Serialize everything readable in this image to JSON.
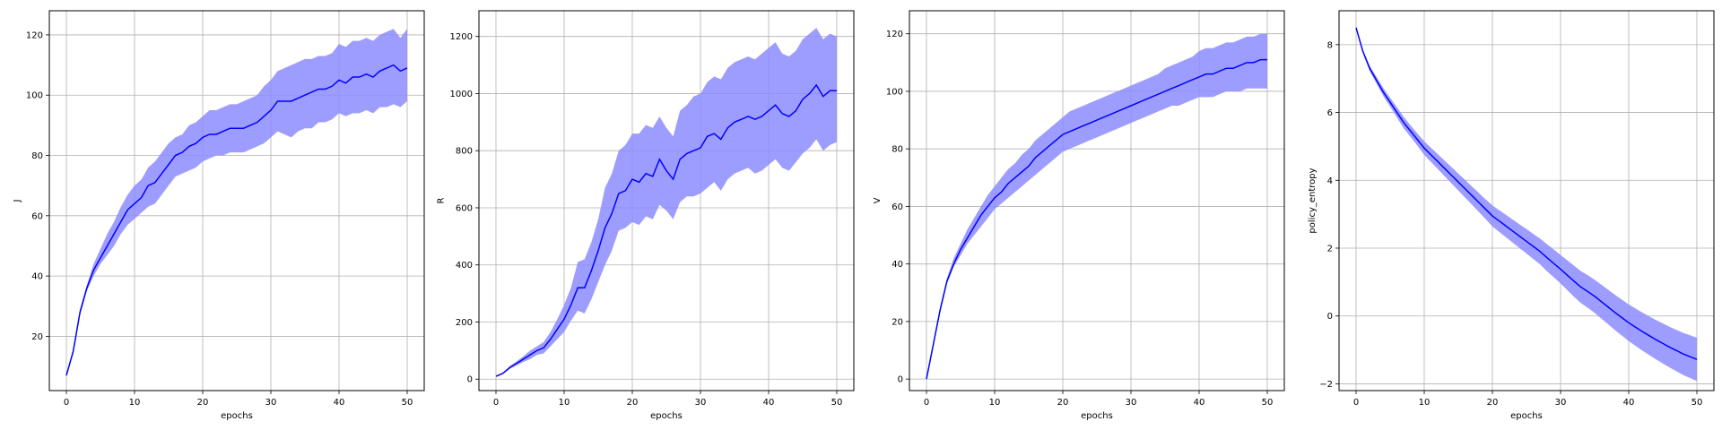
{
  "colors": {
    "line": "#0000ff",
    "band": "#8c8cff",
    "grid": "#b0b0b0"
  },
  "chart_data": [
    {
      "type": "line",
      "xlabel": "epochs",
      "ylabel": "J",
      "xlim": [
        -2.5,
        52.5
      ],
      "ylim": [
        2,
        128
      ],
      "xticks": [
        0,
        10,
        20,
        30,
        40,
        50
      ],
      "yticks": [
        20,
        40,
        60,
        80,
        100,
        120
      ],
      "grid": true,
      "x": [
        0,
        1,
        2,
        3,
        4,
        5,
        6,
        7,
        8,
        9,
        10,
        11,
        12,
        13,
        14,
        15,
        16,
        17,
        18,
        19,
        20,
        21,
        22,
        23,
        24,
        25,
        26,
        27,
        28,
        29,
        30,
        31,
        32,
        33,
        34,
        35,
        36,
        37,
        38,
        39,
        40,
        41,
        42,
        43,
        44,
        45,
        46,
        47,
        48,
        49,
        50
      ],
      "series": [
        {
          "mean": [
            7,
            15,
            28,
            36,
            42,
            46,
            50,
            54,
            58,
            62,
            64,
            66,
            70,
            71,
            74,
            77,
            80,
            81,
            83,
            84,
            86,
            87,
            87,
            88,
            89,
            89,
            89,
            90,
            91,
            93,
            95,
            98,
            98,
            98,
            99,
            100,
            101,
            102,
            102,
            103,
            105,
            104,
            106,
            106,
            107,
            106,
            108,
            109,
            110,
            108,
            109
          ],
          "upper": [
            7,
            15,
            29,
            37,
            44,
            49,
            54,
            58,
            63,
            67,
            70,
            72,
            76,
            78,
            81,
            84,
            86,
            87,
            90,
            91,
            93,
            95,
            95,
            96,
            97,
            97,
            98,
            99,
            100,
            103,
            105,
            108,
            109,
            110,
            111,
            112,
            112,
            113,
            113,
            114,
            117,
            116,
            118,
            118,
            119,
            118,
            120,
            121,
            122,
            119,
            122
          ],
          "lower": [
            7,
            14,
            27,
            35,
            40,
            44,
            47,
            50,
            54,
            57,
            59,
            61,
            63,
            64,
            67,
            70,
            73,
            74,
            75,
            76,
            78,
            79,
            80,
            80,
            81,
            81,
            81,
            82,
            83,
            84,
            86,
            88,
            87,
            86,
            88,
            89,
            89,
            91,
            91,
            92,
            94,
            93,
            94,
            94,
            95,
            94,
            96,
            96,
            97,
            96,
            98
          ]
        }
      ]
    },
    {
      "type": "line",
      "xlabel": "epochs",
      "ylabel": "R",
      "xlim": [
        -2.5,
        52.5
      ],
      "ylim": [
        -40,
        1290
      ],
      "xticks": [
        0,
        10,
        20,
        30,
        40,
        50
      ],
      "yticks": [
        0,
        200,
        400,
        600,
        800,
        1000,
        1200
      ],
      "grid": true,
      "x": [
        0,
        1,
        2,
        3,
        4,
        5,
        6,
        7,
        8,
        9,
        10,
        11,
        12,
        13,
        14,
        15,
        16,
        17,
        18,
        19,
        20,
        21,
        22,
        23,
        24,
        25,
        26,
        27,
        28,
        29,
        30,
        31,
        32,
        33,
        34,
        35,
        36,
        37,
        38,
        39,
        40,
        41,
        42,
        43,
        44,
        45,
        46,
        47,
        48,
        49,
        50
      ],
      "series": [
        {
          "mean": [
            10,
            20,
            40,
            55,
            70,
            85,
            100,
            110,
            140,
            175,
            210,
            260,
            320,
            320,
            380,
            450,
            530,
            580,
            650,
            660,
            700,
            690,
            720,
            710,
            770,
            730,
            700,
            770,
            790,
            800,
            810,
            850,
            860,
            840,
            880,
            900,
            910,
            920,
            910,
            920,
            940,
            960,
            930,
            920,
            940,
            980,
            1000,
            1030,
            990,
            1010,
            1010
          ],
          "upper": [
            10,
            22,
            45,
            62,
            80,
            100,
            115,
            130,
            165,
            210,
            260,
            320,
            410,
            420,
            480,
            560,
            670,
            720,
            800,
            820,
            860,
            860,
            890,
            880,
            920,
            880,
            850,
            940,
            960,
            990,
            1000,
            1040,
            1060,
            1050,
            1090,
            1110,
            1120,
            1130,
            1120,
            1140,
            1160,
            1180,
            1140,
            1130,
            1150,
            1190,
            1210,
            1230,
            1190,
            1210,
            1200
          ],
          "lower": [
            10,
            18,
            36,
            48,
            60,
            70,
            85,
            90,
            115,
            140,
            165,
            205,
            240,
            230,
            280,
            340,
            400,
            450,
            520,
            530,
            550,
            540,
            570,
            560,
            610,
            590,
            560,
            620,
            640,
            640,
            650,
            670,
            690,
            660,
            700,
            720,
            730,
            740,
            720,
            730,
            750,
            770,
            740,
            730,
            760,
            790,
            810,
            840,
            800,
            820,
            830
          ]
        }
      ]
    },
    {
      "type": "line",
      "xlabel": "epochs",
      "ylabel": "V",
      "xlim": [
        -2.5,
        52.5
      ],
      "ylim": [
        -4,
        128
      ],
      "xticks": [
        0,
        10,
        20,
        30,
        40,
        50
      ],
      "yticks": [
        0,
        20,
        40,
        60,
        80,
        100,
        120
      ],
      "grid": true,
      "x": [
        0,
        1,
        2,
        3,
        4,
        5,
        6,
        7,
        8,
        9,
        10,
        11,
        12,
        13,
        14,
        15,
        16,
        17,
        18,
        19,
        20,
        21,
        22,
        23,
        24,
        25,
        26,
        27,
        28,
        29,
        30,
        31,
        32,
        33,
        34,
        35,
        36,
        37,
        38,
        39,
        40,
        41,
        42,
        43,
        44,
        45,
        46,
        47,
        48,
        49,
        50
      ],
      "series": [
        {
          "mean": [
            0,
            12,
            24,
            34,
            40,
            45,
            49,
            53,
            57,
            60,
            63,
            65,
            68,
            70,
            72,
            74,
            77,
            79,
            81,
            83,
            85,
            86,
            87,
            88,
            89,
            90,
            91,
            92,
            93,
            94,
            95,
            96,
            97,
            98,
            99,
            100,
            101,
            102,
            103,
            104,
            105,
            106,
            106,
            107,
            108,
            108,
            109,
            110,
            110,
            111,
            111
          ],
          "upper": [
            0,
            12,
            25,
            35,
            42,
            47,
            52,
            56,
            60,
            64,
            67,
            70,
            73,
            75,
            78,
            80,
            83,
            85,
            87,
            89,
            91,
            93,
            94,
            95,
            96,
            97,
            98,
            99,
            100,
            101,
            102,
            103,
            104,
            105,
            106,
            108,
            109,
            110,
            111,
            112,
            114,
            115,
            115,
            116,
            117,
            117,
            118,
            119,
            119,
            120,
            120
          ],
          "lower": [
            0,
            11,
            23,
            33,
            39,
            43,
            47,
            50,
            53,
            56,
            59,
            61,
            63,
            65,
            67,
            69,
            71,
            73,
            75,
            77,
            79,
            80,
            81,
            82,
            83,
            84,
            85,
            86,
            87,
            88,
            89,
            90,
            91,
            92,
            93,
            94,
            95,
            95,
            96,
            97,
            98,
            98,
            98,
            99,
            100,
            100,
            100,
            101,
            101,
            101,
            101
          ]
        }
      ]
    },
    {
      "type": "line",
      "xlabel": "epochs",
      "ylabel": "policy_entropy",
      "xlim": [
        -2.5,
        52.5
      ],
      "ylim": [
        -2.2,
        9
      ],
      "xticks": [
        0,
        10,
        20,
        30,
        40,
        50
      ],
      "yticks": [
        -2,
        0,
        2,
        4,
        6,
        8
      ],
      "grid": true,
      "x": [
        0,
        1,
        2,
        3,
        4,
        5,
        6,
        7,
        8,
        9,
        10,
        11,
        12,
        13,
        14,
        15,
        16,
        17,
        18,
        19,
        20,
        21,
        22,
        23,
        24,
        25,
        26,
        27,
        28,
        29,
        30,
        31,
        32,
        33,
        34,
        35,
        36,
        37,
        38,
        39,
        40,
        41,
        42,
        43,
        44,
        45,
        46,
        47,
        48,
        49,
        50
      ],
      "series": [
        {
          "mean": [
            8.5,
            7.8,
            7.3,
            6.95,
            6.6,
            6.3,
            6.0,
            5.7,
            5.45,
            5.2,
            4.95,
            4.75,
            4.55,
            4.35,
            4.15,
            3.95,
            3.75,
            3.55,
            3.35,
            3.15,
            2.95,
            2.8,
            2.65,
            2.5,
            2.35,
            2.2,
            2.05,
            1.9,
            1.72,
            1.55,
            1.38,
            1.2,
            1.02,
            0.85,
            0.72,
            0.58,
            0.42,
            0.26,
            0.1,
            -0.05,
            -0.2,
            -0.33,
            -0.46,
            -0.58,
            -0.7,
            -0.81,
            -0.92,
            -1.02,
            -1.12,
            -1.2,
            -1.28
          ],
          "upper": [
            8.55,
            7.85,
            7.38,
            7.05,
            6.72,
            6.43,
            6.15,
            5.87,
            5.62,
            5.38,
            5.15,
            4.96,
            4.77,
            4.58,
            4.39,
            4.2,
            4.01,
            3.82,
            3.63,
            3.44,
            3.26,
            3.12,
            2.98,
            2.84,
            2.7,
            2.56,
            2.42,
            2.28,
            2.12,
            1.96,
            1.8,
            1.64,
            1.48,
            1.32,
            1.2,
            1.07,
            0.92,
            0.77,
            0.62,
            0.48,
            0.34,
            0.22,
            0.1,
            -0.01,
            -0.12,
            -0.22,
            -0.32,
            -0.41,
            -0.5,
            -0.57,
            -0.64
          ],
          "lower": [
            8.45,
            7.75,
            7.22,
            6.85,
            6.48,
            6.17,
            5.85,
            5.53,
            5.28,
            5.02,
            4.75,
            4.54,
            4.33,
            4.12,
            3.91,
            3.7,
            3.49,
            3.28,
            3.07,
            2.86,
            2.64,
            2.48,
            2.32,
            2.16,
            2.0,
            1.84,
            1.68,
            1.52,
            1.32,
            1.14,
            0.96,
            0.76,
            0.56,
            0.38,
            0.24,
            0.09,
            -0.08,
            -0.25,
            -0.42,
            -0.58,
            -0.74,
            -0.88,
            -1.02,
            -1.15,
            -1.28,
            -1.4,
            -1.52,
            -1.63,
            -1.74,
            -1.83,
            -1.92
          ]
        }
      ]
    }
  ]
}
